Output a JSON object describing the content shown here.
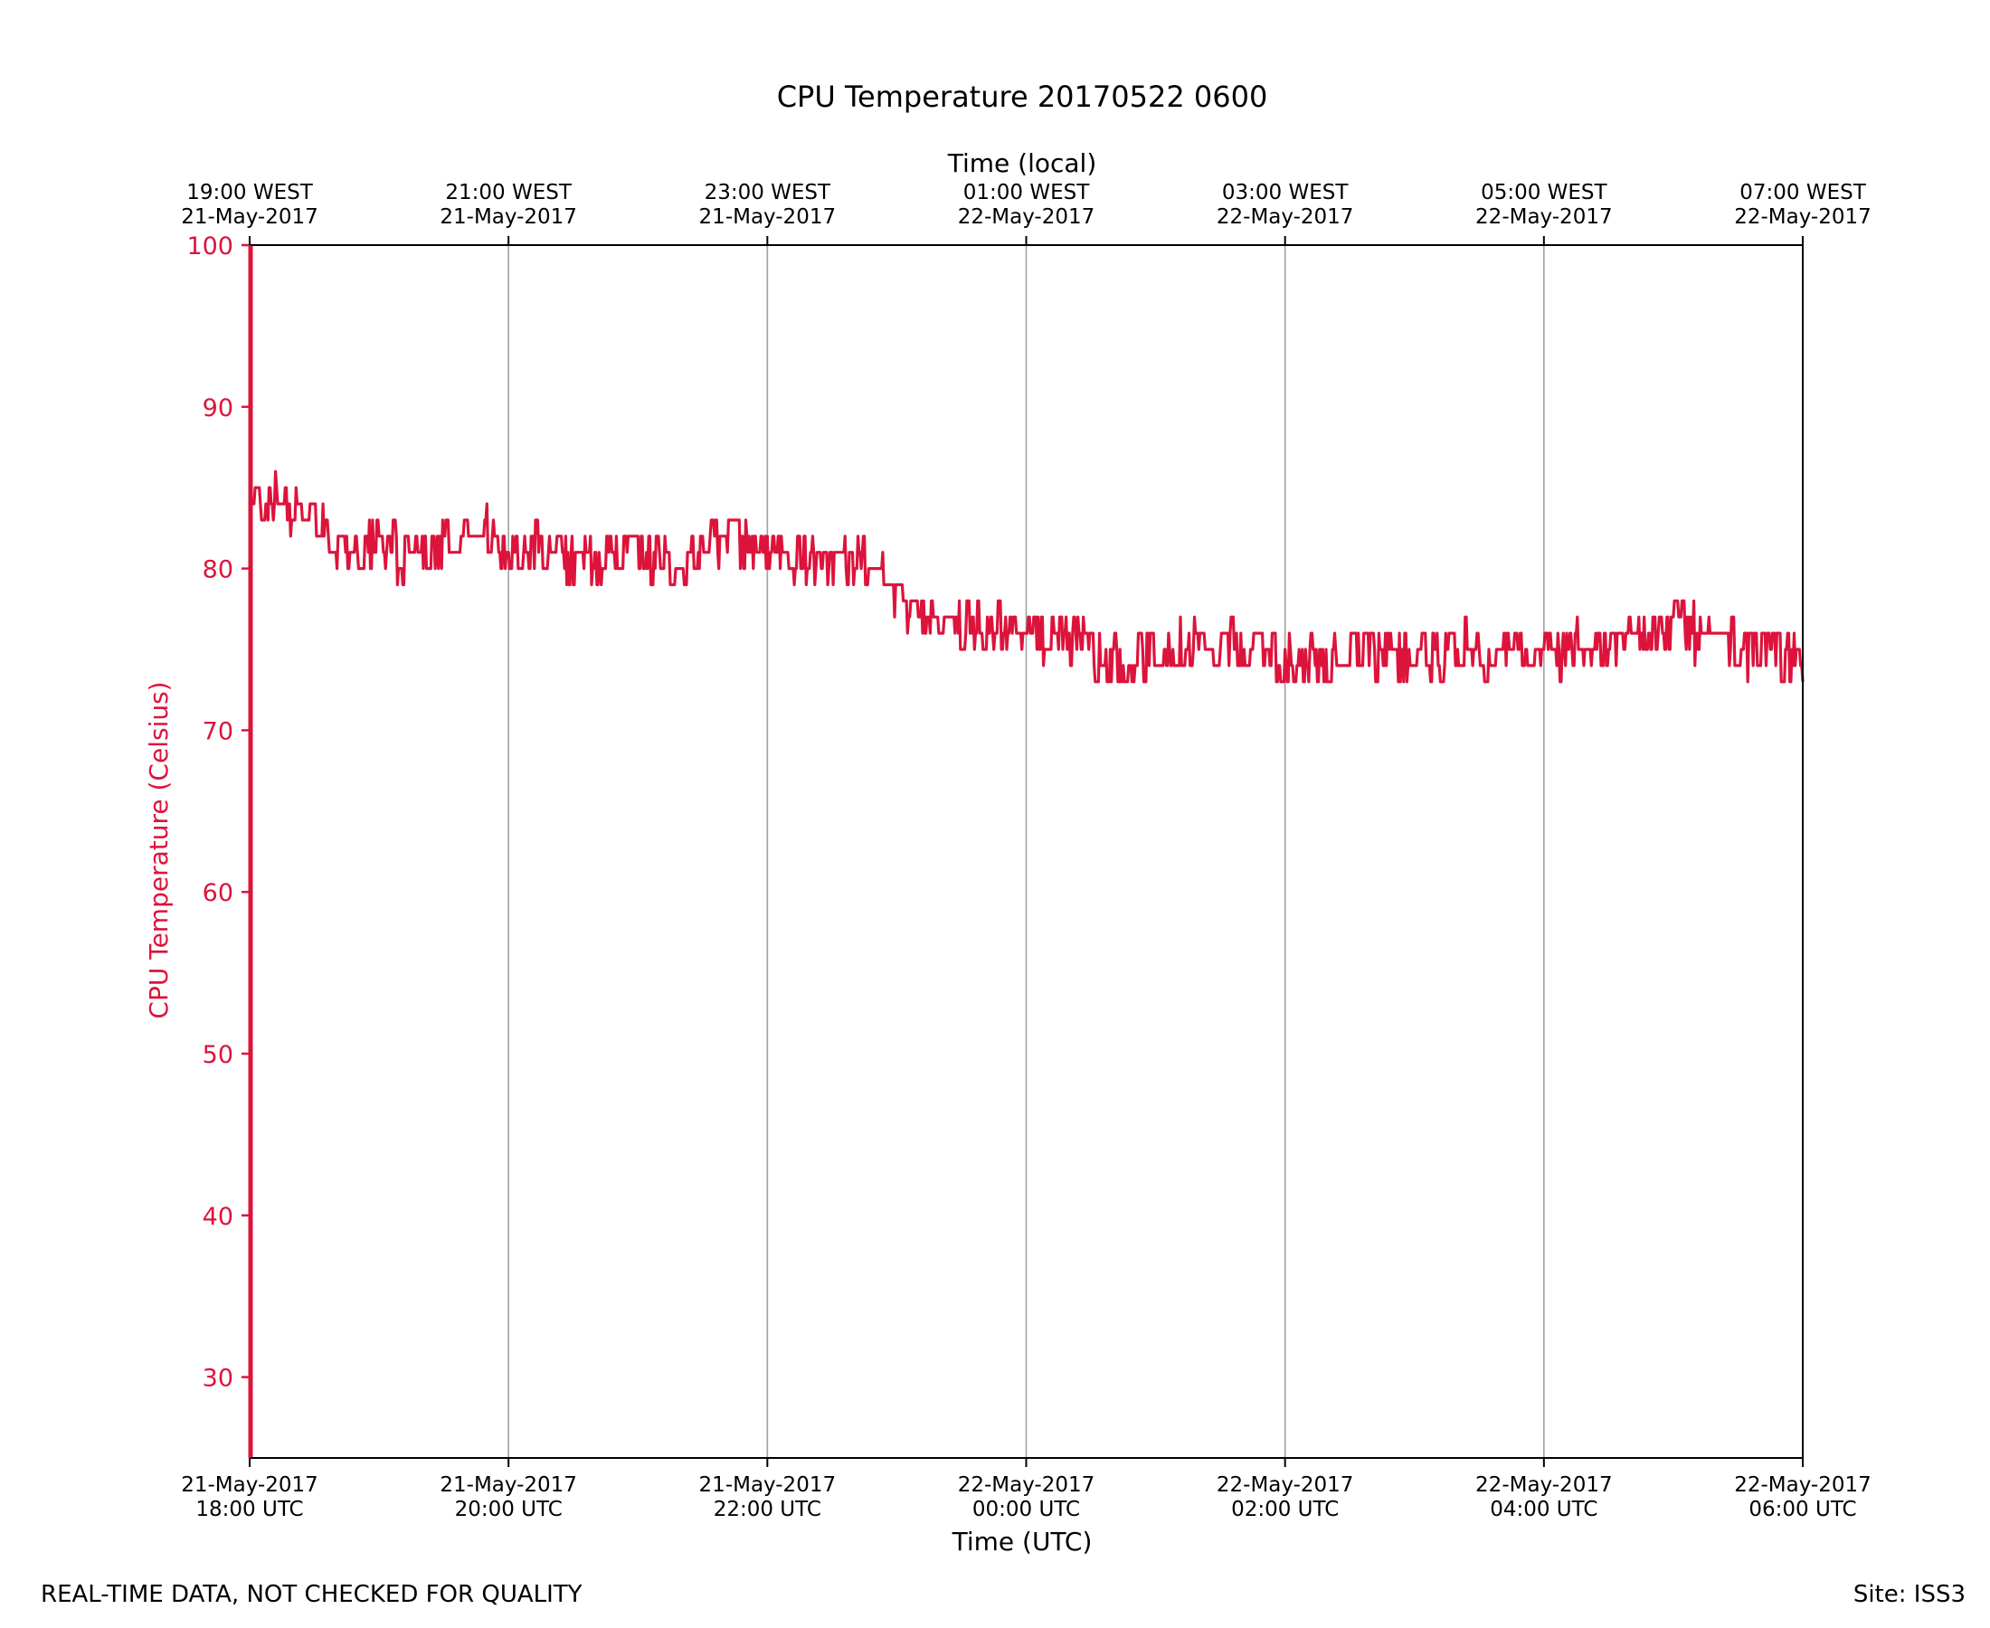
{
  "chart_data": {
    "type": "line",
    "title": "CPU Temperature 20170522 0600",
    "xlabel": "Time (UTC)",
    "x2label": "Time (local)",
    "ylabel": "CPU Temperature (Celsius)",
    "ylim": [
      25,
      100
    ],
    "yticks": [
      30,
      40,
      50,
      60,
      70,
      80,
      90,
      100
    ],
    "xlim_hours": [
      0,
      12
    ],
    "xticks": [
      {
        "hour": 0,
        "utc_date": "21-May-2017",
        "utc_time": "18:00 UTC",
        "local_time": "19:00 WEST",
        "local_date": "21-May-2017"
      },
      {
        "hour": 2,
        "utc_date": "21-May-2017",
        "utc_time": "20:00 UTC",
        "local_time": "21:00 WEST",
        "local_date": "21-May-2017"
      },
      {
        "hour": 4,
        "utc_date": "21-May-2017",
        "utc_time": "22:00 UTC",
        "local_time": "23:00 WEST",
        "local_date": "21-May-2017"
      },
      {
        "hour": 6,
        "utc_date": "22-May-2017",
        "utc_time": "00:00 UTC",
        "local_time": "01:00 WEST",
        "local_date": "22-May-2017"
      },
      {
        "hour": 8,
        "utc_date": "22-May-2017",
        "utc_time": "02:00 UTC",
        "local_time": "03:00 WEST",
        "local_date": "22-May-2017"
      },
      {
        "hour": 10,
        "utc_date": "22-May-2017",
        "utc_time": "04:00 UTC",
        "local_time": "05:00 WEST",
        "local_date": "22-May-2017"
      },
      {
        "hour": 12,
        "utc_date": "22-May-2017",
        "utc_time": "06:00 UTC",
        "local_time": "07:00 WEST",
        "local_date": "22-May-2017"
      }
    ],
    "grid": "vertical",
    "series": [
      {
        "color": "#dc143c",
        "x_hours": [
          0.0,
          0.25,
          0.5,
          0.75,
          1.0,
          1.25,
          1.5,
          1.75,
          2.0,
          2.25,
          2.5,
          2.75,
          3.0,
          3.25,
          3.5,
          3.75,
          4.0,
          4.25,
          4.5,
          4.75,
          5.0,
          5.25,
          5.5,
          5.75,
          6.0,
          6.25,
          6.5,
          6.75,
          7.0,
          7.25,
          7.5,
          7.75,
          8.0,
          8.25,
          8.5,
          8.75,
          9.0,
          9.25,
          9.5,
          9.75,
          10.0,
          10.25,
          10.5,
          10.75,
          11.0,
          11.25,
          11.5,
          11.75,
          12.0
        ],
        "values": [
          84,
          84,
          83,
          81,
          82,
          80,
          82,
          83,
          81,
          82,
          80,
          81,
          81,
          80,
          81,
          82,
          81,
          81,
          80,
          81,
          78,
          77,
          77,
          76,
          76,
          76,
          75,
          74,
          75,
          75,
          75,
          75,
          74,
          74,
          75,
          75,
          74,
          75,
          75,
          75,
          75,
          75,
          75,
          76,
          76,
          76,
          75,
          75,
          74
        ],
        "noise_amplitude": 1.6
      }
    ],
    "initial_spike": {
      "from": 25,
      "to": 100
    }
  },
  "footer": {
    "left": "REAL-TIME DATA, NOT CHECKED FOR QUALITY",
    "right": "Site: ISS3"
  },
  "colors": {
    "series": "#dc143c",
    "axis_left": "#dc143c",
    "grid": "#a0a0a0"
  }
}
